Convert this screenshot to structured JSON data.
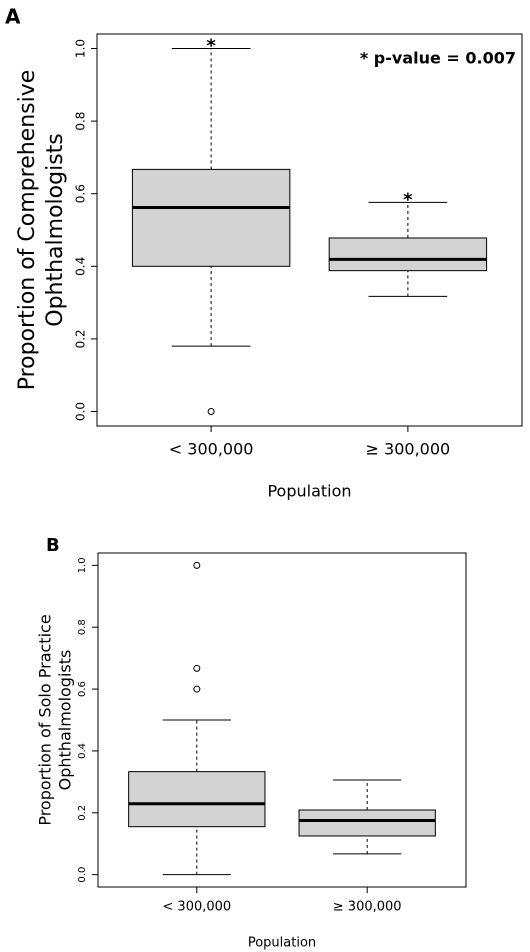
{
  "chart_data": [
    {
      "type": "box",
      "panel": "A",
      "ylabel": [
        "Proportion of Comprehensive",
        "Ophthalmologists"
      ],
      "xlabel": "Population",
      "annotation": "* p-value = 0.007",
      "categories": [
        "< 300,000",
        "≥ 300,000"
      ],
      "color": "#d3d3d3",
      "boxes": [
        {
          "whisker_low": 0.18,
          "q1": 0.4,
          "median": 0.562,
          "q3": 0.667,
          "whisker_high": 1.0,
          "outliers": [
            0.0
          ],
          "marker": "*"
        },
        {
          "whisker_low": 0.317,
          "q1": 0.388,
          "median": 0.419,
          "q3": 0.478,
          "whisker_high": 0.576,
          "outliers": [],
          "marker": "*"
        }
      ],
      "ylim": [
        -0.04,
        1.04
      ],
      "yticks": [
        {
          "value": 0,
          "label": "0.0"
        },
        0.2,
        0.4,
        0.6,
        0.8,
        {
          "value": 1,
          "label": "1.0"
        }
      ]
    },
    {
      "type": "box",
      "panel": "B",
      "ylabel": [
        "Proportion of Solo Practice",
        "Ophthalmologists"
      ],
      "xlabel": "Population",
      "categories": [
        "< 300,000",
        "≥ 300,000"
      ],
      "color": "#d3d3d3",
      "boxes": [
        {
          "whisker_low": 0.0,
          "q1": 0.155,
          "median": 0.229,
          "q3": 0.333,
          "whisker_high": 0.5,
          "outliers": [
            0.6,
            0.667,
            1.0
          ]
        },
        {
          "whisker_low": 0.067,
          "q1": 0.125,
          "median": 0.175,
          "q3": 0.209,
          "whisker_high": 0.306,
          "outliers": []
        }
      ],
      "ylim": [
        -0.04,
        1.04
      ],
      "yticks": [
        {
          "value": 0,
          "label": "0.0"
        },
        0.2,
        0.4,
        0.6,
        0.8,
        {
          "value": 1,
          "label": "1.0"
        }
      ]
    }
  ]
}
